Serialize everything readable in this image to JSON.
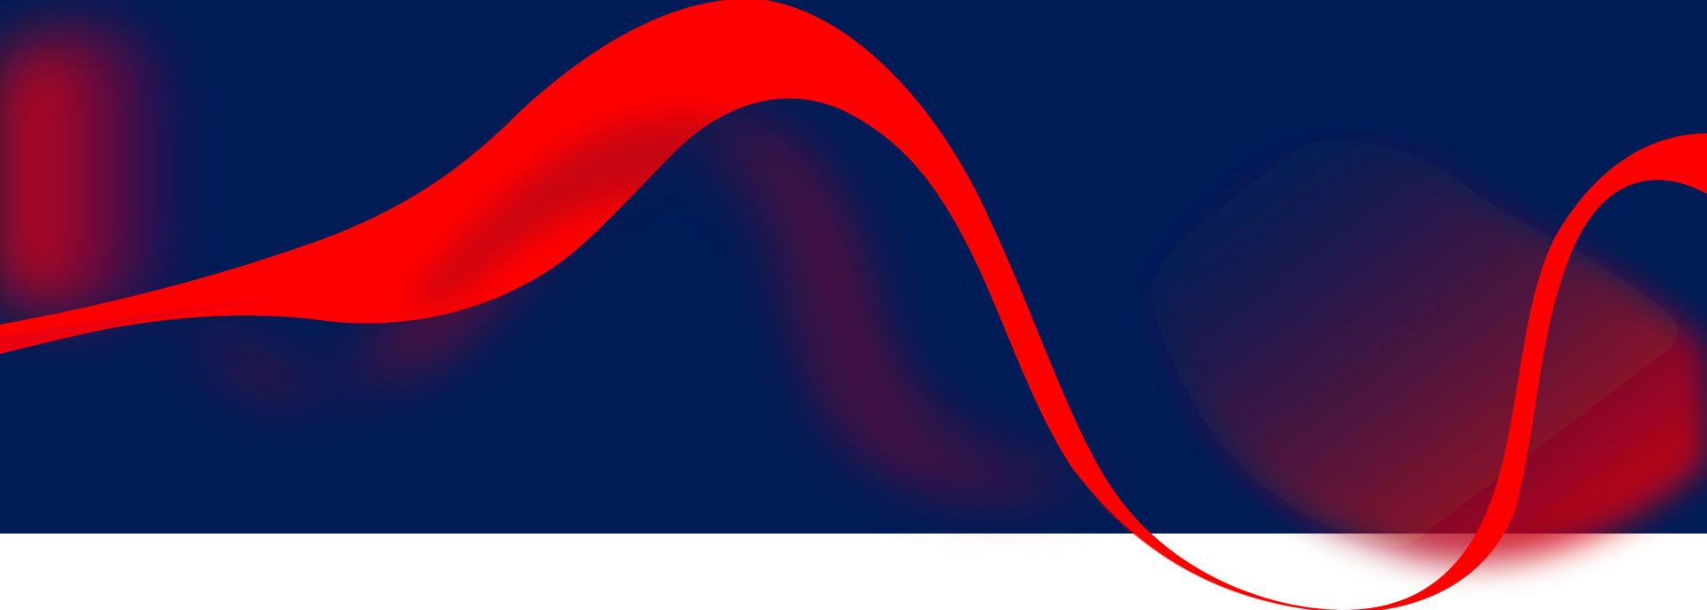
{
  "colors": {
    "background_navy": "#001C57",
    "wave_red": "#FF0000",
    "page_white": "#FFFFFF"
  },
  "artwork": {
    "type": "decorative-ribbon-wave",
    "ribbon_count": 1
  }
}
